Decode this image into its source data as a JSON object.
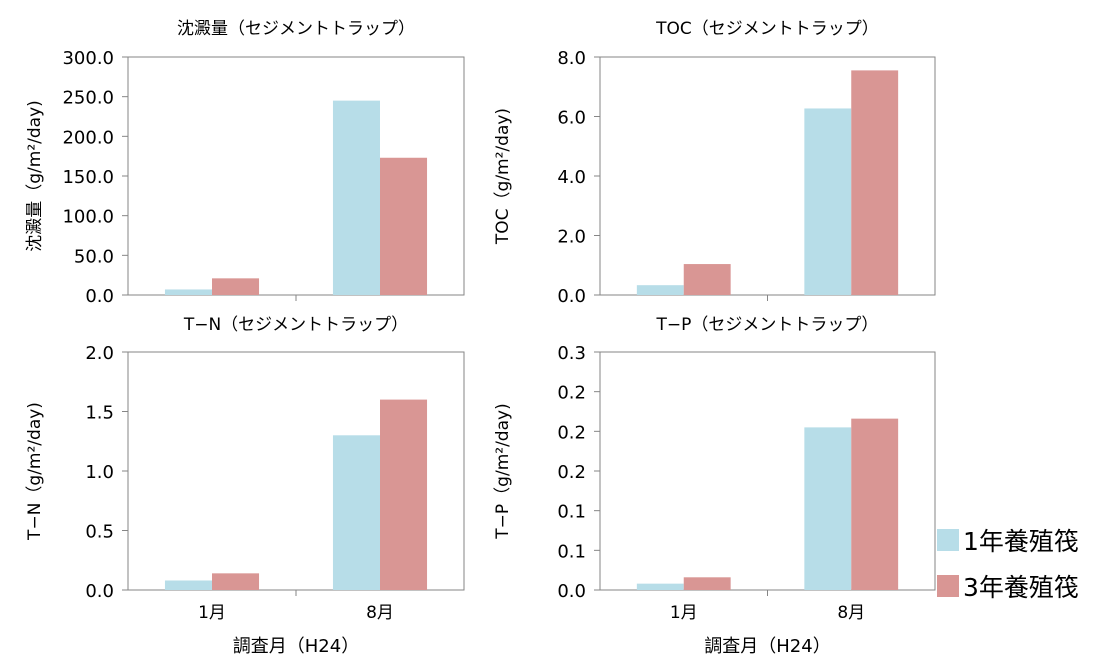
{
  "colors": {
    "series1": "#b7dde8",
    "series2": "#d99694",
    "axis": "#868686"
  },
  "legend": [
    "1年養殖筏",
    "3年養殖筏"
  ],
  "chart_data": [
    {
      "type": "bar",
      "title": "沈澱量（セジメントトラップ）",
      "ylabel": "沈澱量（g/m²/day)",
      "xlabel": "",
      "categories": [
        "1月",
        "8月"
      ],
      "yticks": [
        "0.0",
        "50.0",
        "100.0",
        "150.0",
        "200.0",
        "250.0",
        "300.0"
      ],
      "ylim": [
        0,
        300
      ],
      "series": [
        {
          "name": "1年養殖筏",
          "values": [
            7,
            245
          ]
        },
        {
          "name": "3年養殖筏",
          "values": [
            21,
            173
          ]
        }
      ]
    },
    {
      "type": "bar",
      "title": "TOC（セジメントトラップ）",
      "ylabel": "TOC（g/m²/day)",
      "xlabel": "",
      "categories": [
        "1月",
        "8月"
      ],
      "yticks": [
        "0.0",
        "2.0",
        "4.0",
        "6.0",
        "8.0"
      ],
      "ylim": [
        0,
        8
      ],
      "series": [
        {
          "name": "1年養殖筏",
          "values": [
            0.33,
            6.27
          ]
        },
        {
          "name": "3年養殖筏",
          "values": [
            1.04,
            7.55
          ]
        }
      ]
    },
    {
      "type": "bar",
      "title": "T−N（セジメントトラップ）",
      "ylabel": "T−N（g/m²/day)",
      "xlabel": "調査月（H24）",
      "categories": [
        "1月",
        "8月"
      ],
      "yticks": [
        "0.0",
        "0.5",
        "1.0",
        "1.5",
        "2.0"
      ],
      "ylim": [
        0,
        2
      ],
      "series": [
        {
          "name": "1年養殖筏",
          "values": [
            0.08,
            1.3
          ]
        },
        {
          "name": "3年養殖筏",
          "values": [
            0.14,
            1.6
          ]
        }
      ]
    },
    {
      "type": "bar",
      "title": "T−P（セジメントトラップ）",
      "ylabel": "T−P（g/m²/day)",
      "xlabel": "調査月（H24）",
      "categories": [
        "1月",
        "8月"
      ],
      "yticks": [
        "0.0",
        "0.1",
        "0.1",
        "0.2",
        "0.2",
        "0.2",
        "0.3"
      ],
      "ylim": [
        0,
        0.3
      ],
      "series": [
        {
          "name": "1年養殖筏",
          "values": [
            0.008,
            0.205
          ]
        },
        {
          "name": "3年養殖筏",
          "values": [
            0.016,
            0.216
          ]
        }
      ]
    }
  ]
}
